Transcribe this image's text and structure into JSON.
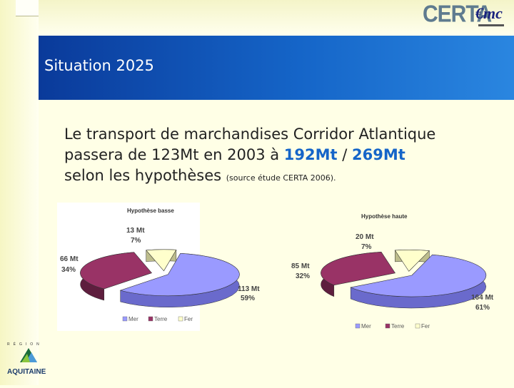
{
  "slide": {
    "title": "Situation 2025",
    "body_line1": "Le transport de marchandises Corridor Atlantique",
    "body_line2_prefix": "passera de 123Mt en 2003 à ",
    "body_value_low": "192Mt",
    "body_sep": " / ",
    "body_value_high": "269Mt",
    "body_line3": "selon les hypothèses ",
    "body_source": "(source étude CERTA 2006)."
  },
  "logos": {
    "certa": "CERTA",
    "emc": "€mc",
    "region_label": "RÉGION",
    "region_name": "AQUITAINE"
  },
  "colors": {
    "mer": "#9a9aff",
    "terre": "#993366",
    "fer": "#ffffcc",
    "title_bg": "#1565c8"
  },
  "chart_data": [
    {
      "type": "pie",
      "title": "Hypothèse basse",
      "categories": [
        "Mer",
        "Terre",
        "Fer"
      ],
      "values": [
        113,
        66,
        13
      ],
      "percents": [
        59,
        34,
        7
      ],
      "labels": [
        {
          "value": "113 Mt",
          "percent": "59%"
        },
        {
          "value": "66 Mt",
          "percent": "34%"
        },
        {
          "value": "13 Mt",
          "percent": "7%"
        }
      ],
      "legend": [
        "Mer",
        "Terre",
        "Fer"
      ],
      "legend_position": "bottom"
    },
    {
      "type": "pie",
      "title": "Hypothèse haute",
      "categories": [
        "Mer",
        "Terre",
        "Fer"
      ],
      "values": [
        164,
        85,
        20
      ],
      "percents": [
        61,
        32,
        7
      ],
      "labels": [
        {
          "value": "164 Mt",
          "percent": "61%"
        },
        {
          "value": "85 Mt",
          "percent": "32%"
        },
        {
          "value": "20 Mt",
          "percent": "7%"
        }
      ],
      "legend": [
        "Mer",
        "Terre",
        "Fer"
      ],
      "legend_position": "bottom"
    }
  ]
}
